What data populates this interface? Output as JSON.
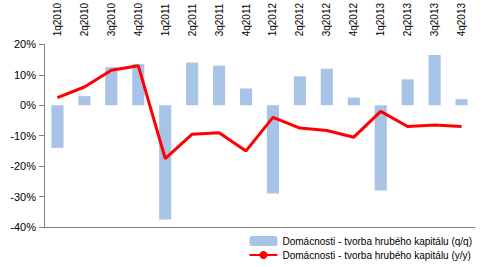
{
  "chart_data": {
    "type": "bar",
    "categories": [
      "1q2010",
      "2q2010",
      "3q2010",
      "4q2010",
      "1q2011",
      "2q2011",
      "3q2011",
      "4q2011",
      "1q2012",
      "2q2012",
      "3q2012",
      "4q2012",
      "1q2013",
      "2q2013",
      "3q2013",
      "4q2013"
    ],
    "series": [
      {
        "name": "Domácnosti - tvorba hrubého kapitálu (q/q)",
        "type": "bar",
        "color": "#a7c3e6",
        "values": [
          -14,
          3,
          12.5,
          13.5,
          -37.5,
          14,
          13,
          5.5,
          -29,
          9.5,
          12,
          2.5,
          -28,
          8.5,
          16.5,
          2
        ]
      },
      {
        "name": "Domácnosti - tvorba hrubého kapitálu (y/y)",
        "type": "line",
        "color": "#ff0000",
        "marker": "none",
        "values": [
          2.5,
          6,
          11.5,
          13,
          -17.5,
          -9.5,
          -9,
          -15,
          -4,
          -7.5,
          -8.3,
          -10.5,
          -2,
          -7,
          -6.5,
          -7
        ]
      }
    ],
    "ylim": [
      -40,
      20
    ],
    "yticks": [
      {
        "value": -40,
        "label": "-40%"
      },
      {
        "value": -30,
        "label": "-30%"
      },
      {
        "value": -20,
        "label": "-20%"
      },
      {
        "value": -10,
        "label": "-10%"
      },
      {
        "value": 0,
        "label": "0%"
      },
      {
        "value": 10,
        "label": "10%"
      },
      {
        "value": 20,
        "label": "20%"
      }
    ],
    "grid": false,
    "legend": "bottom-right"
  }
}
